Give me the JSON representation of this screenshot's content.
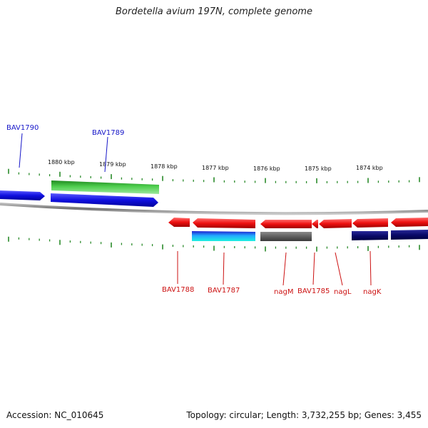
{
  "title": "Bordetella avium 197N, complete genome",
  "footer": {
    "accession": "Accession: NC_010645",
    "summary": "Topology: circular; Length: 3,732,255 bp; Genes: 3,455"
  },
  "colors": {
    "forward_gene": "#1010e0",
    "reverse_gene": "#ee1111",
    "rna_green": "#3cb83c",
    "backbone": "#888888",
    "tick": "#2a8a2a",
    "label_forward": "#1515c8",
    "label_reverse": "#cc1111"
  },
  "ruler": {
    "labels": [
      "1880 kbp",
      "1879 kbp",
      "1878 kbp",
      "1877 kbp",
      "1876 kbp",
      "1875 kbp",
      "1874 kbp"
    ]
  },
  "features": {
    "forward": [
      {
        "name": "BAV1790"
      },
      {
        "name": "BAV1789"
      }
    ],
    "reverse": [
      {
        "name": "BAV1788"
      },
      {
        "name": "BAV1787"
      },
      {
        "name": "nagM"
      },
      {
        "name": "BAV1785"
      },
      {
        "name": "nagL"
      },
      {
        "name": "nagK"
      }
    ]
  }
}
